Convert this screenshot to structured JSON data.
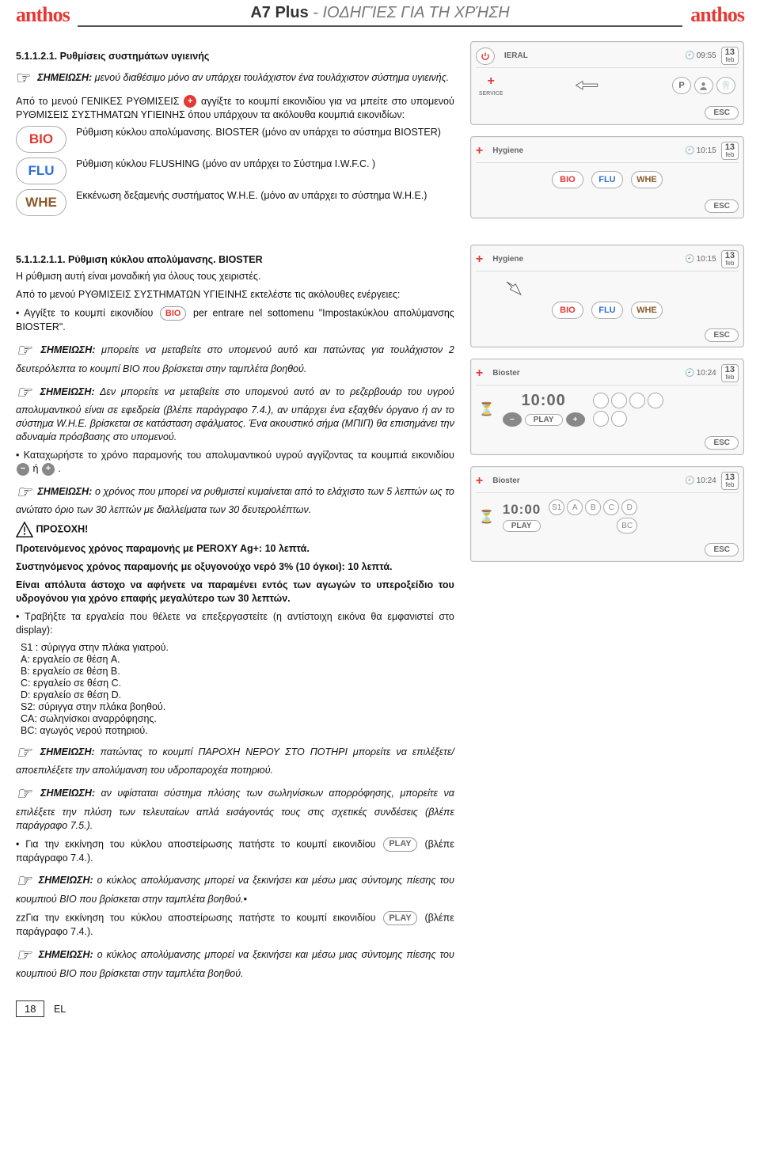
{
  "header": {
    "logo": "anthos",
    "title_main": "A7 Plus",
    "title_sub": "- ΙΟΔΗΓΊΕΣ ΓΙΑ ΤΗ ΧΡΉΣΗ"
  },
  "sec1": {
    "num": "5.1.1.2.1. Ρυθμίσεις συστημάτων υγιεινής",
    "note1_label": "ΣΗΜΕΙΩΣΗ:",
    "note1_text": "μενού διαθέσιμο μόνο αν υπάρχει τουλάχιστον ένα τουλάχιστον σύστημα υγιεινής.",
    "p1a": "Από το μενού ΓΕΝΙΚΕΣ ΡΥΘΜΙΣΕΙΣ ",
    "p1b": "αγγίξτε το κουμπί εικονιδίου για να μπείτε στο υπομενού ΡΥΘΜΙΣΕΙΣ ΣΥΣΤΗΜΑΤΩΝ ΥΓΙΕΙΝΗΣ όπου υπάρχουν τα ακόλουθα κουμπιά εικονιδίων:",
    "defs": [
      {
        "pill": "BIO",
        "cls": "c-red",
        "t": "Ρύθμιση κύκλου απολύμανσης. BIOSTER (μόνο αν υπάρχει το σύστημα BIOSTER)"
      },
      {
        "pill": "FLU",
        "cls": "c-blue",
        "t": "Ρύθμιση κύκλου FLUSHING (μόνο αν υπάρχει το Σύστημα I.W.F.C. )"
      },
      {
        "pill": "WHE",
        "cls": "c-brown",
        "t": "Εκκένωση δεξαμενής συστήματος W.H.E. (μόνο αν υπάρχει το σύστημα W.H.E.)"
      }
    ]
  },
  "sec2": {
    "num": "5.1.1.2.1.1. Ρύθμιση κύκλου απολύμανσης. BIOSTER",
    "p0": "Η ρύθμιση αυτή είναι μοναδική για όλους τους χειριστές.",
    "p1": "Από το μενού ΡΥΘΜΙΣΕΙΣ ΣΥΣΤΗΜΑΤΩΝ ΥΓΙΕΙΝΗΣ εκτελέστε τις ακόλουθες ενέργειες:",
    "b1a": "Αγγίξτε το κουμπί εικονιδίου ",
    "b1_btn": "BIO",
    "b1b": " per entrare nel sottomenu \"Impostaκύκλου απολύμανσης BIOSTER\".",
    "note2_label": "ΣΗΜΕΙΩΣΗ:",
    "note2_text": "μπορείτε να μεταβείτε στο υπομενού αυτό και πατώντας για τουλάχιστον 2 δευτερόλεπτα το κουμπί BIO που βρίσκεται στην ταμπλέτα βοηθού.",
    "note3_label": "ΣΗΜΕΙΩΣΗ:",
    "note3_text": "Δεν μπορείτε να μεταβείτε στο υπομενού αυτό αν το ρεζερβουάρ του υγρού απολυμαντικού είναι σε εφεδρεία (βλέπε παράγραφο 7.4.), αν υπάρχει ένα εξαχθέν όργανο ή αν το σύστημα W.H.E. βρίσκεται σε κατάσταση σφάλματος. Ένα ακουστικό σήμα (ΜΠΙΠ) θα επισημάνει την αδυναμία πρόσβασης στο υπομενού.",
    "b2_pre": "Καταχωρήστε το χρόνο παραμονής του απολυμαντικού υγρού αγγίζοντας τα κουμπιά εικονιδίου ",
    "b2_or": " ή ",
    "b2_post": ".",
    "note4_label": "ΣΗΜΕΙΩΣΗ:",
    "note4_text": "ο χρόνος που μπορεί να ρυθμιστεί κυμαίνεται από το ελάχιστο των 5 λεπτών ως το ανώτατο όριο των 30 λεπτών με διαλλείματα των 30 δευτερολέπτων.",
    "warn_label": "ΠΡΟΣΟΧΗ!",
    "warn1": "Προτεινόμενος χρόνος παραμονής με PEROXY Ag+: 10 λεπτά.",
    "warn2": "Συστηνόμενος χρόνος παραμονής με οξυγονούχο νερό 3% (10 όγκοι): 10 λεπτά.",
    "warn3": "Είναι απόλυτα άστοχο να αφήνετε να παραμένει εντός των αγωγών το υπεροξείδιο του υδρογόνου για χρόνο επαφής μεγαλύτερο των 30 λεπτών.",
    "b3": "Τραβήξτε τα εργαλεία που θέλετε να επεξεργαστείτε (η αντίστοιχη εικόνα θα εμφανιστεί στο display):",
    "tools": [
      "S1 : σύριγγα στην πλάκα γιατρού.",
      "A: εργαλείο σε θέση A.",
      "B: εργαλείο σε θέση B.",
      "C: εργαλείο σε θέση C.",
      "D: εργαλείο σε θέση D.",
      "S2: σύριγγα στην πλάκα βοηθού.",
      "CA: σωληνίσκοι αναρρόφησης.",
      "BC: αγωγός νερού ποτηριού."
    ],
    "note5_label": "ΣΗΜΕΙΩΣΗ:",
    "note5_text": "πατώντας το κουμπί ΠΑΡΟΧΗ ΝΕΡΟΥ ΣΤΟ ΠΟΤΗΡΙ μπορείτε να επιλέξετε/αποεπιλέξετε την απολύμανση του υδροπαροχέα ποτηριού.",
    "note6_label": "ΣΗΜΕΙΩΣΗ:",
    "note6_text": "αν υφίσταται σύστημα πλύσης των σωληνίσκων απορρόφησης, μπορείτε να επιλέξετε την πλύση των τελευταίων απλά εισάγοντάς τους στις σχετικές συνδέσεις (βλέπε παράγραφο 7.5.).",
    "b4_pre": "Για την εκκίνηση του κύκλου αποστείρωσης πατήστε το κουμπί εικονιδίου ",
    "b4_btn": "PLAY",
    "b4_post": " (βλέπε παράγραφο 7.4.).",
    "note7_label": "ΣΗΜΕΙΩΣΗ:",
    "note7_text": "ο κύκλος απολύμανσης μπορεί να ξεκινήσει και μέσω μιας σύντομης πίεσης του κουμπιού BIO που βρίσκεται στην ταμπλέτα βοηθού.•",
    "b5_pre": "zzΓια την εκκίνηση του κύκλου αποστείρωσης πατήστε το κουμπί εικονιδίου ",
    "b5_btn": "PLAY",
    "b5_post": " (βλέπε παράγραφο 7.4.).",
    "note8_label": "ΣΗΜΕΙΩΣΗ:",
    "note8_text": "ο κύκλος απολύμανσης μπορεί να ξεκινήσει και μέσω μιας σύντομης πίεσης του κουμπιού BIO που βρίσκεται στην ταμπλέτα βοηθού."
  },
  "screens": {
    "esc": "ESC",
    "play": "PLAY",
    "s1": {
      "title": "IERAL",
      "time": "09:55",
      "day": "13",
      "mon": "feb",
      "svc": "SERVICE",
      "p": "P"
    },
    "s2": {
      "title": "Hygiene",
      "time": "10:15",
      "day": "13",
      "mon": "feb",
      "bio": "BIO",
      "flu": "FLU",
      "whe": "WHE"
    },
    "s3": {
      "title": "Hygiene",
      "time": "10:15",
      "day": "13",
      "mon": "feb",
      "bio": "BIO",
      "flu": "FLU",
      "whe": "WHE"
    },
    "s4": {
      "title": "Bioster",
      "time": "10:24",
      "day": "13",
      "mon": "feb",
      "big": "10:00"
    },
    "s5": {
      "title": "Bioster",
      "time": "10:24",
      "day": "13",
      "mon": "feb",
      "big": "10:00",
      "s1": "S1",
      "a": "A",
      "b": "B",
      "c": "C",
      "d": "D",
      "bc": "BC"
    }
  },
  "inline": {
    "plus_red": "+",
    "minus": "−",
    "plus": "+"
  },
  "footer": {
    "page": "18",
    "lang": "EL"
  }
}
